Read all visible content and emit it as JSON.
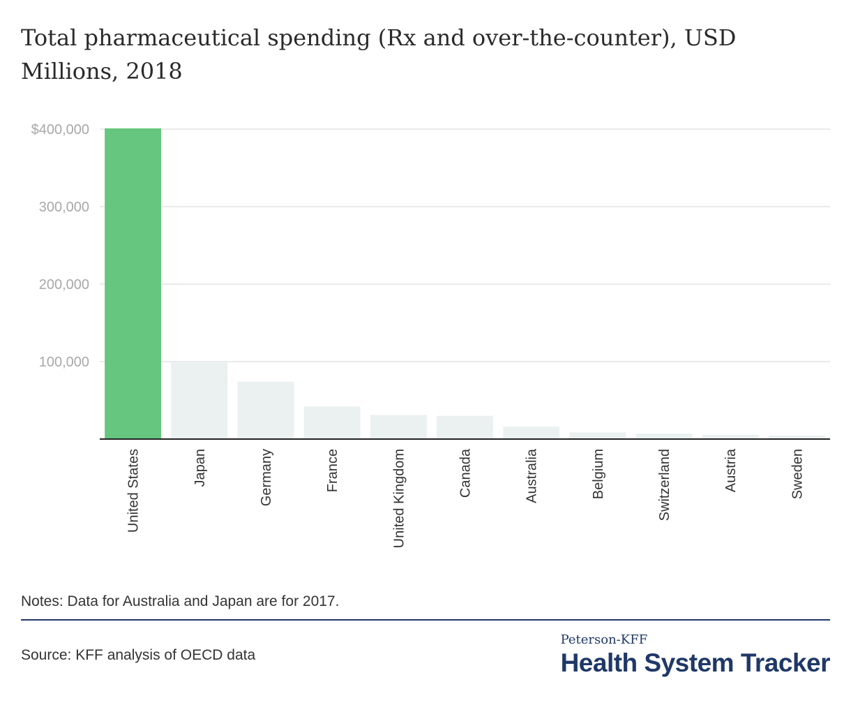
{
  "chart_data": {
    "type": "bar",
    "title": "Total pharmaceutical spending (Rx and over-the-counter), USD Millions, 2018",
    "xlabel": "",
    "ylabel": "",
    "categories": [
      "United States",
      "Japan",
      "Germany",
      "France",
      "United Kingdom",
      "Canada",
      "Australia",
      "Belgium",
      "Switzerland",
      "Austria",
      "Sweden"
    ],
    "values": [
      401000,
      100000,
      74000,
      42000,
      31000,
      30000,
      16000,
      8500,
      7000,
      5500,
      4500
    ],
    "ylim": [
      0,
      400000
    ],
    "yticks": [
      {
        "value": 100000,
        "label": "100,000"
      },
      {
        "value": 200000,
        "label": "200,000"
      },
      {
        "value": 300000,
        "label": "300,000"
      },
      {
        "value": 400000,
        "label": "$400,000"
      }
    ],
    "highlight_category": "United States",
    "colors": {
      "highlight": "#66c57e",
      "default": "#ebf0f1",
      "gridline": "#e4e4e4",
      "axis": "#222222",
      "tick_label": "#a8a8a8",
      "category_label": "#333333"
    },
    "grid": true
  },
  "notes": "Notes: Data for Australia and Japan are for 2017.",
  "source": "Source: KFF analysis of OECD data",
  "logo": {
    "top": "Peterson-KFF",
    "main": "Health System Tracker"
  }
}
